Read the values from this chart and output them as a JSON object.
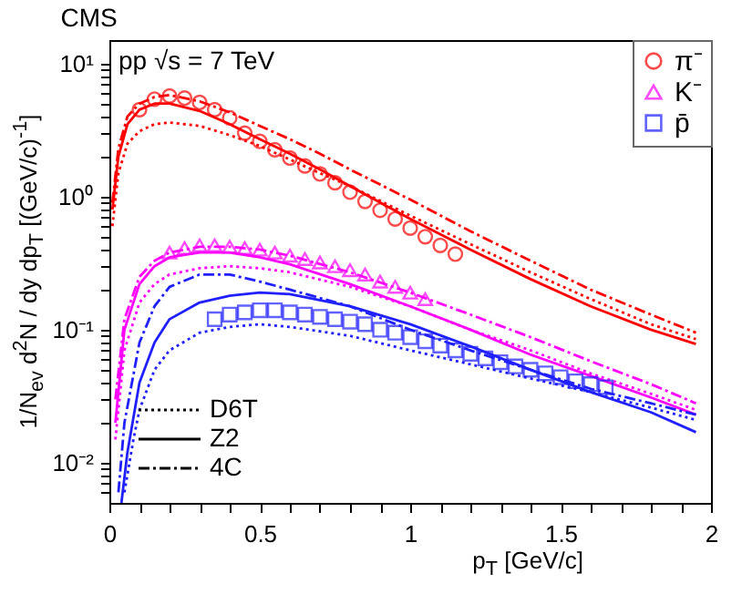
{
  "chart_data": {
    "type": "line",
    "title": "CMS",
    "xlabel": "p$_{T}$ [GeV/c]",
    "ylabel": "1/N$_{ev}$ d$^{2}$N / dy dp$_{T}$ [(GeV/c)$^{-1}$]",
    "annotations": [
      "pp √s = 7 TeV",
      "D6T",
      "Z2",
      "4C"
    ],
    "xlim": [
      0,
      2
    ],
    "ylim": [
      0.005,
      15
    ],
    "log": "y",
    "grid": false,
    "legend": "top right",
    "xticks": [
      0,
      {
        "value": 0.1,
        "label": null
      },
      {
        "value": 0.2,
        "label": null
      },
      {
        "value": 0.3,
        "label": null
      },
      {
        "value": 0.4,
        "label": null
      },
      0.5,
      {
        "value": 0.6,
        "label": null
      },
      {
        "value": 0.7,
        "label": null
      },
      {
        "value": 0.8,
        "label": null
      },
      {
        "value": 0.9,
        "label": null
      },
      1,
      {
        "value": 1.1,
        "label": null
      },
      {
        "value": 1.2,
        "label": null
      },
      {
        "value": 1.3,
        "label": null
      },
      {
        "value": 1.4,
        "label": null
      },
      1.5,
      {
        "value": 1.6,
        "label": null
      },
      {
        "value": 1.7,
        "label": null
      },
      {
        "value": 1.8,
        "label": null
      },
      {
        "value": 1.9,
        "label": null
      },
      2
    ],
    "yticks": [
      {
        "value": 0.006,
        "label": null
      },
      {
        "value": 0.007,
        "label": null
      },
      {
        "value": 0.008,
        "label": null
      },
      {
        "value": 0.009,
        "label": null
      },
      {
        "value": 0.01,
        "label": "10⁻²"
      },
      {
        "value": 0.02,
        "label": null
      },
      {
        "value": 0.03,
        "label": null
      },
      {
        "value": 0.04,
        "label": null
      },
      {
        "value": 0.05,
        "label": null
      },
      {
        "value": 0.06,
        "label": null
      },
      {
        "value": 0.07,
        "label": null
      },
      {
        "value": 0.08,
        "label": null
      },
      {
        "value": 0.09,
        "label": null
      },
      {
        "value": 0.1,
        "label": "10⁻¹"
      },
      {
        "value": 0.2,
        "label": null
      },
      {
        "value": 0.3,
        "label": null
      },
      {
        "value": 0.4,
        "label": null
      },
      {
        "value": 0.5,
        "label": null
      },
      {
        "value": 0.6,
        "label": null
      },
      {
        "value": 0.7,
        "label": null
      },
      {
        "value": 0.8,
        "label": null
      },
      {
        "value": 0.9,
        "label": null
      },
      {
        "value": 1,
        "label": "10⁰"
      },
      {
        "value": 2,
        "label": null
      },
      {
        "value": 3,
        "label": null
      },
      {
        "value": 4,
        "label": null
      },
      {
        "value": 5,
        "label": null
      },
      {
        "value": 6,
        "label": null
      },
      {
        "value": 7,
        "label": null
      },
      {
        "value": 8,
        "label": null
      },
      {
        "value": 9,
        "label": null
      },
      {
        "value": 10,
        "label": "10¹"
      }
    ],
    "series": [
      {
        "name": "π⁻",
        "type": "scatter",
        "marker": "circle",
        "color": "#ff0000",
        "x": [
          0.1,
          0.15,
          0.2,
          0.25,
          0.3,
          0.35,
          0.4,
          0.45,
          0.5,
          0.55,
          0.6,
          0.65,
          0.7,
          0.75,
          0.8,
          0.85,
          0.9,
          0.95,
          1.0,
          1.05,
          1.1,
          1.15
        ],
        "values": [
          4.5,
          5.4,
          5.7,
          5.5,
          5.1,
          4.5,
          3.9,
          3.0,
          2.6,
          2.25,
          1.95,
          1.7,
          1.48,
          1.27,
          1.08,
          0.92,
          0.79,
          0.68,
          0.58,
          0.5,
          0.43,
          0.37
        ]
      },
      {
        "name": "K⁻",
        "type": "scatter",
        "marker": "triangle",
        "color": "#ff00ff",
        "x": [
          0.2,
          0.25,
          0.3,
          0.35,
          0.4,
          0.45,
          0.5,
          0.55,
          0.6,
          0.65,
          0.7,
          0.75,
          0.8,
          0.85,
          0.9,
          0.95,
          1.0,
          1.05
        ],
        "values": [
          0.38,
          0.41,
          0.43,
          0.43,
          0.42,
          0.41,
          0.4,
          0.38,
          0.36,
          0.34,
          0.32,
          0.3,
          0.28,
          0.26,
          0.23,
          0.21,
          0.19,
          0.17
        ]
      },
      {
        "name": "p̄",
        "type": "scatter",
        "marker": "square",
        "color": "#2020ff",
        "x": [
          0.35,
          0.4,
          0.45,
          0.5,
          0.55,
          0.6,
          0.65,
          0.7,
          0.75,
          0.8,
          0.85,
          0.9,
          0.95,
          1.0,
          1.05,
          1.1,
          1.15,
          1.2,
          1.25,
          1.3,
          1.35,
          1.4,
          1.45,
          1.5,
          1.55,
          1.6,
          1.65
        ],
        "values": [
          0.12,
          0.13,
          0.135,
          0.14,
          0.14,
          0.135,
          0.13,
          0.125,
          0.12,
          0.115,
          0.11,
          0.1,
          0.095,
          0.088,
          0.082,
          0.076,
          0.07,
          0.066,
          0.061,
          0.057,
          0.053,
          0.05,
          0.047,
          0.044,
          0.041,
          0.039,
          0.037
        ]
      },
      {
        "type": "line",
        "line_style": "dotted",
        "color": "#ff0000",
        "x": [
          0.01,
          0.03,
          0.06,
          0.1,
          0.15,
          0.2,
          0.3,
          0.4,
          0.5,
          0.6,
          0.7,
          0.8,
          1.0,
          1.2,
          1.4,
          1.6,
          1.8,
          1.95
        ],
        "values": [
          0.6,
          1.5,
          2.5,
          3.1,
          3.5,
          3.6,
          3.4,
          2.9,
          2.4,
          1.9,
          1.5,
          1.2,
          0.72,
          0.44,
          0.27,
          0.17,
          0.11,
          0.085
        ]
      },
      {
        "type": "line",
        "line_style": "solid",
        "color": "#ff0000",
        "x": [
          0.01,
          0.03,
          0.06,
          0.1,
          0.15,
          0.2,
          0.3,
          0.4,
          0.5,
          0.6,
          0.7,
          0.8,
          1.0,
          1.2,
          1.4,
          1.6,
          1.8,
          1.95
        ],
        "values": [
          0.8,
          2.0,
          3.5,
          4.5,
          5.0,
          5.0,
          4.4,
          3.5,
          2.7,
          2.1,
          1.6,
          1.2,
          0.68,
          0.4,
          0.24,
          0.15,
          0.1,
          0.078
        ]
      },
      {
        "type": "line",
        "line_style": "dashed",
        "color": "#ff0000",
        "x": [
          0.01,
          0.03,
          0.06,
          0.1,
          0.15,
          0.2,
          0.3,
          0.4,
          0.5,
          0.6,
          0.7,
          0.8,
          1.0,
          1.2,
          1.4,
          1.6,
          1.8,
          1.95
        ],
        "values": [
          0.9,
          2.3,
          4.0,
          5.0,
          5.6,
          5.8,
          5.2,
          4.3,
          3.4,
          2.7,
          2.1,
          1.6,
          0.95,
          0.55,
          0.33,
          0.2,
          0.13,
          0.095
        ]
      },
      {
        "type": "line",
        "line_style": "dotted",
        "color": "#ff00ff",
        "x": [
          0.02,
          0.05,
          0.1,
          0.15,
          0.2,
          0.3,
          0.4,
          0.5,
          0.6,
          0.8,
          1.0,
          1.2,
          1.4,
          1.6,
          1.8,
          1.95
        ],
        "values": [
          0.015,
          0.07,
          0.16,
          0.22,
          0.26,
          0.29,
          0.3,
          0.29,
          0.27,
          0.21,
          0.15,
          0.1,
          0.07,
          0.047,
          0.033,
          0.025
        ]
      },
      {
        "type": "line",
        "line_style": "solid",
        "color": "#ff00ff",
        "x": [
          0.02,
          0.05,
          0.1,
          0.15,
          0.2,
          0.3,
          0.4,
          0.5,
          0.6,
          0.8,
          1.0,
          1.2,
          1.4,
          1.6,
          1.8,
          1.95
        ],
        "values": [
          0.02,
          0.1,
          0.22,
          0.3,
          0.35,
          0.38,
          0.38,
          0.35,
          0.31,
          0.22,
          0.15,
          0.1,
          0.065,
          0.045,
          0.031,
          0.023
        ]
      },
      {
        "type": "line",
        "line_style": "dashed",
        "color": "#ff00ff",
        "x": [
          0.02,
          0.05,
          0.1,
          0.15,
          0.2,
          0.3,
          0.4,
          0.5,
          0.6,
          0.8,
          1.0,
          1.2,
          1.4,
          1.6,
          1.8,
          1.95
        ],
        "values": [
          0.03,
          0.12,
          0.25,
          0.33,
          0.38,
          0.42,
          0.42,
          0.4,
          0.36,
          0.27,
          0.19,
          0.13,
          0.088,
          0.058,
          0.039,
          0.028
        ]
      },
      {
        "type": "line",
        "line_style": "dotted",
        "color": "#2020ff",
        "x": [
          0.05,
          0.08,
          0.1,
          0.15,
          0.2,
          0.3,
          0.4,
          0.5,
          0.6,
          0.8,
          1.0,
          1.2,
          1.4,
          1.6,
          1.8,
          1.95
        ],
        "values": [
          0.006,
          0.015,
          0.025,
          0.05,
          0.07,
          0.095,
          0.105,
          0.11,
          0.105,
          0.09,
          0.07,
          0.055,
          0.043,
          0.034,
          0.026,
          0.021
        ]
      },
      {
        "type": "line",
        "line_style": "solid",
        "color": "#2020ff",
        "x": [
          0.04,
          0.06,
          0.1,
          0.15,
          0.2,
          0.3,
          0.4,
          0.5,
          0.6,
          0.8,
          1.0,
          1.2,
          1.4,
          1.6,
          1.8,
          1.95
        ],
        "values": [
          0.005,
          0.012,
          0.04,
          0.08,
          0.12,
          0.16,
          0.18,
          0.19,
          0.185,
          0.15,
          0.11,
          0.075,
          0.05,
          0.034,
          0.024,
          0.017
        ]
      },
      {
        "type": "line",
        "line_style": "dashed",
        "color": "#2020ff",
        "x": [
          0.03,
          0.05,
          0.1,
          0.15,
          0.2,
          0.3,
          0.4,
          0.5,
          0.6,
          0.8,
          1.0,
          1.2,
          1.4,
          1.6,
          1.8,
          1.95
        ],
        "values": [
          0.006,
          0.02,
          0.08,
          0.15,
          0.21,
          0.26,
          0.26,
          0.23,
          0.2,
          0.15,
          0.1,
          0.07,
          0.05,
          0.036,
          0.028,
          0.023
        ]
      }
    ]
  }
}
